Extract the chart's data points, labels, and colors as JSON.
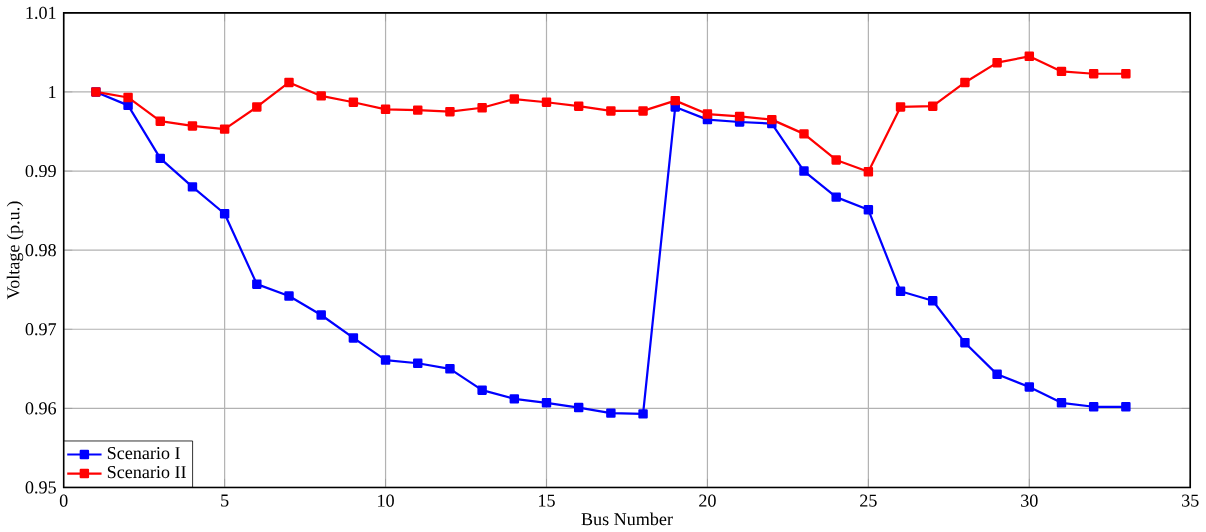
{
  "chart_data": {
    "type": "line",
    "xlabel": "Bus Number",
    "ylabel": "Voltage (p.u.)",
    "x": [
      1,
      2,
      3,
      4,
      5,
      6,
      7,
      8,
      9,
      10,
      11,
      12,
      13,
      14,
      15,
      16,
      17,
      18,
      19,
      20,
      21,
      22,
      23,
      24,
      25,
      26,
      27,
      28,
      29,
      30,
      31,
      32,
      33
    ],
    "series": [
      {
        "name": "Scenario I",
        "color": "#0000ff",
        "values": [
          1.0,
          0.9983,
          0.9916,
          0.988,
          0.9846,
          0.9757,
          0.9742,
          0.9718,
          0.9689,
          0.9661,
          0.9657,
          0.965,
          0.9623,
          0.9612,
          0.9607,
          0.9601,
          0.9594,
          0.9593,
          0.9981,
          0.9965,
          0.9962,
          0.996,
          0.99,
          0.9867,
          0.9851,
          0.9748,
          0.9736,
          0.9683,
          0.9643,
          0.9627,
          0.9607,
          0.9602,
          0.9602
        ]
      },
      {
        "name": "Scenario II",
        "color": "#ff0000",
        "values": [
          1.0,
          0.9993,
          0.9963,
          0.9957,
          0.9953,
          0.9981,
          1.0012,
          0.9995,
          0.9987,
          0.9978,
          0.9977,
          0.9975,
          0.998,
          0.9991,
          0.9987,
          0.9982,
          0.9976,
          0.9976,
          0.9989,
          0.9972,
          0.9969,
          0.9965,
          0.9947,
          0.9914,
          0.9899,
          0.9981,
          0.9982,
          1.0012,
          1.0037,
          1.0045,
          1.0026,
          1.0023,
          1.0023
        ]
      }
    ],
    "xlim": [
      0,
      35
    ],
    "xticks": [
      0,
      5,
      10,
      15,
      20,
      25,
      30,
      35
    ],
    "ylim": [
      0.95,
      1.01
    ],
    "yticks": [
      0.95,
      0.96,
      0.97,
      0.98,
      0.99,
      1,
      1.01
    ],
    "grid": true,
    "legend": "bottom left",
    "marker": "square",
    "line_style": "solid"
  }
}
